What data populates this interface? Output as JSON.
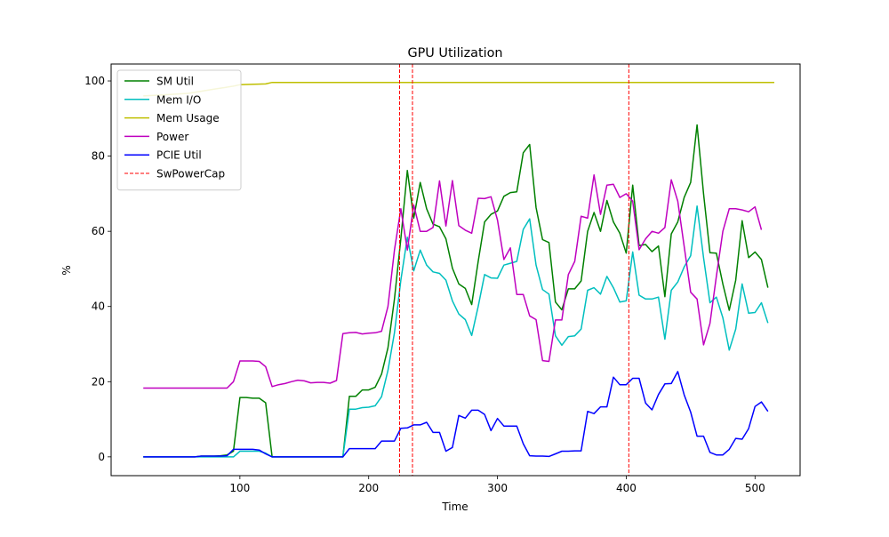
{
  "chart_data": {
    "type": "line",
    "title": "GPU Utilization",
    "xlabel": "Time",
    "ylabel": "%",
    "xlim": [
      0,
      535
    ],
    "ylim": [
      -5,
      104.5
    ],
    "xticks": [
      100,
      200,
      300,
      400,
      500
    ],
    "yticks": [
      0,
      20,
      40,
      60,
      80,
      100
    ],
    "grid": false,
    "legend_position": "top-left",
    "series": [
      {
        "name": "SM Util",
        "color": "#008000",
        "x": [
          25,
          30,
          35,
          40,
          45,
          50,
          55,
          60,
          65,
          70,
          75,
          80,
          85,
          90,
          95,
          100,
          105,
          110,
          115,
          120,
          125,
          130,
          135,
          140,
          145,
          150,
          155,
          160,
          165,
          170,
          175,
          180,
          185,
          190,
          195,
          200,
          205,
          210,
          215,
          220,
          225,
          230,
          235,
          240,
          245,
          250,
          255,
          260,
          265,
          270,
          275,
          280,
          285,
          290,
          295,
          300,
          305,
          310,
          315,
          320,
          325,
          330,
          335,
          340,
          345,
          350,
          355,
          360,
          365,
          370,
          375,
          380,
          385,
          390,
          395,
          400,
          405,
          410,
          415,
          420,
          425,
          430,
          435,
          440,
          445,
          450,
          455,
          460,
          465,
          470,
          475,
          480,
          485,
          490,
          495,
          500,
          505,
          510,
          515
        ],
        "y": [
          0,
          0,
          0,
          0,
          0,
          0,
          0,
          0,
          0,
          0.2,
          0.2,
          0.2,
          0.3,
          0.5,
          1.5,
          15.8,
          15.8,
          15.6,
          15.6,
          14.4,
          0,
          0,
          0,
          0,
          0,
          0,
          0,
          0,
          0,
          0,
          0,
          0,
          16.1,
          16.1,
          17.8,
          17.8,
          18.5,
          22.0,
          29.0,
          42.0,
          58.0,
          76.2,
          63.5,
          73.0,
          66.0,
          61.9,
          61.2,
          58.0,
          50.2,
          46.0,
          44.8,
          40.5,
          52.0,
          62.5,
          64.5,
          65.4,
          69.3,
          70.3,
          70.5,
          80.9,
          83.1,
          66.3,
          57.8,
          57.0,
          41.2,
          39.1,
          44.7,
          44.7,
          46.8,
          60.0,
          65.0,
          60.0,
          68.2,
          62.5,
          59.5,
          54.2,
          72.3,
          56.2,
          56.5,
          54.6,
          56.1,
          42.6,
          59.3,
          62.5,
          69.0,
          73.0,
          88.3,
          70.0,
          54.3,
          54.2,
          46.0,
          39.0,
          47.0,
          62.8,
          53.0,
          54.5,
          52.5,
          45.0,
          null
        ]
      },
      {
        "name": "Mem I/O",
        "color": "#00BFBF",
        "x": [
          25,
          30,
          35,
          40,
          45,
          50,
          55,
          60,
          65,
          70,
          75,
          80,
          85,
          90,
          95,
          100,
          105,
          110,
          115,
          120,
          125,
          130,
          135,
          140,
          145,
          150,
          155,
          160,
          165,
          170,
          175,
          180,
          185,
          190,
          195,
          200,
          205,
          210,
          215,
          220,
          225,
          230,
          235,
          240,
          245,
          250,
          255,
          260,
          265,
          270,
          275,
          280,
          285,
          290,
          295,
          300,
          305,
          310,
          315,
          320,
          325,
          330,
          335,
          340,
          345,
          350,
          355,
          360,
          365,
          370,
          375,
          380,
          385,
          390,
          395,
          400,
          405,
          410,
          415,
          420,
          425,
          430,
          435,
          440,
          445,
          450,
          455,
          460,
          465,
          470,
          475,
          480,
          485,
          490,
          495,
          500,
          505,
          510,
          515
        ],
        "y": [
          0,
          0,
          0,
          0,
          0,
          0,
          0,
          0,
          0,
          0,
          0,
          0,
          0,
          0,
          0,
          1.5,
          1.5,
          1.5,
          1.5,
          1.0,
          0,
          0,
          0,
          0,
          0,
          0,
          0,
          0,
          0,
          0,
          0,
          0,
          12.7,
          12.7,
          13.1,
          13.2,
          13.6,
          16.0,
          23.0,
          33.0,
          47.0,
          58.4,
          49.5,
          55.0,
          51.0,
          49.2,
          48.8,
          47.0,
          41.5,
          38.0,
          36.5,
          32.3,
          40.0,
          48.5,
          47.6,
          47.5,
          51.0,
          51.5,
          52.0,
          60.5,
          63.3,
          51.0,
          44.5,
          43.3,
          32.2,
          29.7,
          32.0,
          32.2,
          34.0,
          44.3,
          45.0,
          43.3,
          48.0,
          45.0,
          41.2,
          41.5,
          54.5,
          43.0,
          42.0,
          42.0,
          42.5,
          31.3,
          44.3,
          46.5,
          50.5,
          53.5,
          66.7,
          53.0,
          41.0,
          42.5,
          37.0,
          28.4,
          34.0,
          46.0,
          38.2,
          38.4,
          41.0,
          35.6,
          null
        ]
      },
      {
        "name": "Mem Usage",
        "color": "#BFBF00",
        "x": [
          25,
          40,
          60,
          80,
          95,
          100,
          120,
          125,
          200,
          300,
          400,
          515
        ],
        "y": [
          96.0,
          96.3,
          96.7,
          97.8,
          98.6,
          99.0,
          99.2,
          99.6,
          99.6,
          99.6,
          99.6,
          99.6
        ]
      },
      {
        "name": "Power",
        "color": "#BF00BF",
        "x": [
          25,
          30,
          35,
          40,
          45,
          50,
          55,
          60,
          65,
          70,
          75,
          80,
          85,
          90,
          95,
          100,
          105,
          110,
          115,
          120,
          125,
          130,
          135,
          140,
          145,
          150,
          155,
          160,
          165,
          170,
          175,
          180,
          185,
          190,
          195,
          200,
          205,
          210,
          215,
          220,
          225,
          230,
          235,
          240,
          245,
          250,
          255,
          260,
          265,
          270,
          275,
          280,
          285,
          290,
          295,
          300,
          305,
          310,
          315,
          320,
          325,
          330,
          335,
          340,
          345,
          350,
          355,
          360,
          365,
          370,
          375,
          380,
          385,
          390,
          395,
          400,
          405,
          410,
          415,
          420,
          425,
          430,
          435,
          440,
          445,
          450,
          455,
          460,
          465,
          470,
          475,
          480,
          485,
          490,
          495,
          500,
          505,
          510,
          515
        ],
        "y": [
          18.3,
          18.3,
          18.3,
          18.3,
          18.3,
          18.3,
          18.3,
          18.3,
          18.3,
          18.3,
          18.3,
          18.3,
          18.3,
          18.3,
          20.0,
          25.5,
          25.5,
          25.5,
          25.4,
          24.0,
          18.7,
          19.2,
          19.5,
          20.0,
          20.4,
          20.2,
          19.7,
          19.8,
          19.8,
          19.6,
          20.3,
          32.8,
          33.0,
          33.1,
          32.7,
          32.9,
          33.0,
          33.4,
          40.0,
          55.0,
          66.0,
          55.0,
          67.0,
          60.0,
          60.0,
          61.0,
          73.4,
          61.4,
          73.5,
          61.5,
          60.3,
          59.5,
          68.8,
          68.7,
          69.2,
          63.0,
          52.5,
          55.6,
          43.2,
          43.2,
          37.5,
          36.5,
          25.6,
          25.4,
          36.4,
          36.4,
          48.5,
          52.0,
          64.0,
          63.5,
          75.0,
          64.5,
          72.3,
          72.5,
          69.0,
          70.0,
          68.0,
          55.1,
          58.0,
          60.0,
          59.5,
          61.0,
          73.7,
          68.0,
          56.0,
          43.8,
          42.0,
          29.8,
          35.5,
          48.0,
          60.0,
          66.0,
          66.0,
          65.7,
          65.2,
          66.5,
          60.4,
          null,
          null
        ]
      },
      {
        "name": "PCIE Util",
        "color": "#0000FF",
        "x": [
          25,
          30,
          35,
          40,
          45,
          50,
          55,
          60,
          65,
          70,
          75,
          80,
          85,
          90,
          95,
          100,
          105,
          110,
          115,
          120,
          125,
          130,
          135,
          140,
          145,
          150,
          155,
          160,
          165,
          170,
          175,
          180,
          185,
          190,
          195,
          200,
          205,
          210,
          215,
          220,
          225,
          230,
          235,
          240,
          245,
          250,
          255,
          260,
          265,
          270,
          275,
          280,
          285,
          290,
          295,
          300,
          305,
          310,
          315,
          320,
          325,
          330,
          335,
          340,
          345,
          350,
          355,
          360,
          365,
          370,
          375,
          380,
          385,
          390,
          395,
          400,
          405,
          410,
          415,
          420,
          425,
          430,
          435,
          440,
          445,
          450,
          455,
          460,
          465,
          470,
          475,
          480,
          485,
          490,
          495,
          500,
          505,
          510,
          515
        ],
        "y": [
          0,
          0,
          0,
          0,
          0,
          0,
          0,
          0,
          0,
          0.2,
          0.2,
          0.2,
          0.2,
          0.3,
          2.0,
          2.0,
          2.0,
          2.0,
          1.8,
          0.8,
          0,
          0,
          0,
          0,
          0,
          0,
          0,
          0,
          0,
          0,
          0,
          0,
          2.2,
          2.2,
          2.2,
          2.2,
          2.2,
          4.2,
          4.2,
          4.2,
          7.6,
          7.7,
          8.5,
          8.5,
          9.2,
          6.5,
          6.5,
          1.5,
          2.5,
          11.0,
          10.3,
          12.4,
          12.4,
          11.3,
          7.0,
          10.2,
          8.2,
          8.2,
          8.2,
          3.5,
          0.3,
          0.2,
          0.2,
          0.1,
          0.8,
          1.5,
          1.5,
          1.6,
          1.6,
          12.1,
          11.5,
          13.3,
          13.3,
          21.2,
          19.2,
          19.2,
          20.9,
          20.9,
          14.3,
          12.5,
          16.6,
          19.4,
          19.5,
          22.7,
          16.5,
          11.9,
          5.5,
          5.5,
          1.2,
          0.5,
          0.5,
          2.0,
          4.9,
          4.7,
          7.5,
          13.4,
          14.6,
          12.1,
          null
        ]
      }
    ],
    "vlines": {
      "name": "SwPowerCap",
      "color": "#FF0000",
      "x": [
        224,
        234,
        402
      ]
    }
  }
}
